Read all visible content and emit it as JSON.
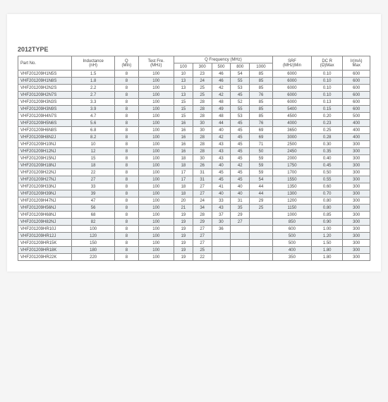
{
  "title": "2012TYPE",
  "headers": {
    "part": "Part No.",
    "inductance": "Inductance\n(nH)",
    "q": "Q\n(Min)",
    "testfre": "Test Fre.\n(MHz)",
    "qfreq": "Q Frequency (MHz)",
    "srf": "SRF\n(MHz)Min",
    "dcr": "DC R\n(Ω)Max",
    "ir": "Ir(mA)\nMax",
    "f100": "100",
    "f300": "300",
    "f500": "500",
    "f800": "800",
    "f1000": "1000"
  },
  "rows": [
    {
      "p": "VHF201209H1N5S",
      "l": "1.5",
      "q": "8",
      "t": "100",
      "v": [
        "10",
        "23",
        "46",
        "54",
        "85"
      ],
      "s": "6000",
      "d": "0.10",
      "i": "600"
    },
    {
      "p": "VHF201209H1N8S",
      "l": "1.8",
      "q": "8",
      "t": "100",
      "v": [
        "13",
        "24",
        "46",
        "55",
        "85"
      ],
      "s": "6000",
      "d": "0.10",
      "i": "600"
    },
    {
      "p": "VHF201209H2N2S",
      "l": "2.2",
      "q": "8",
      "t": "100",
      "v": [
        "13",
        "25",
        "42",
        "53",
        "85"
      ],
      "s": "6000",
      "d": "0.10",
      "i": "600"
    },
    {
      "p": "VHF201209H2N7S",
      "l": "2.7",
      "q": "8",
      "t": "100",
      "v": [
        "13",
        "25",
        "42",
        "45",
        "76"
      ],
      "s": "6000",
      "d": "0.10",
      "i": "600"
    },
    {
      "p": "VHF201209H3N3S",
      "l": "3.3",
      "q": "8",
      "t": "100",
      "v": [
        "15",
        "28",
        "48",
        "52",
        "85"
      ],
      "s": "6000",
      "d": "0.13",
      "i": "600"
    },
    {
      "p": "VHF201209H3N9S",
      "l": "3.9",
      "q": "8",
      "t": "100",
      "v": [
        "15",
        "28",
        "49",
        "55",
        "85"
      ],
      "s": "5400",
      "d": "0.15",
      "i": "600"
    },
    {
      "p": "VHF201209H4N7S",
      "l": "4.7",
      "q": "8",
      "t": "100",
      "v": [
        "15",
        "28",
        "48",
        "53",
        "85"
      ],
      "s": "4500",
      "d": "0.20",
      "i": "500"
    },
    {
      "p": "VHF201209H5N6S",
      "l": "5.6",
      "q": "8",
      "t": "100",
      "v": [
        "16",
        "30",
        "44",
        "45",
        "76"
      ],
      "s": "4000",
      "d": "0.23",
      "i": "400"
    },
    {
      "p": "VHF201209H6N8S",
      "l": "6.8",
      "q": "8",
      "t": "100",
      "v": [
        "16",
        "30",
        "40",
        "45",
        "69"
      ],
      "s": "3650",
      "d": "0.25",
      "i": "400"
    },
    {
      "p": "VHF201209H8N2J",
      "l": "8.2",
      "q": "8",
      "t": "100",
      "v": [
        "16",
        "28",
        "42",
        "45",
        "69"
      ],
      "s": "3000",
      "d": "0.28",
      "i": "400"
    },
    {
      "p": "VHF201209H10NJ",
      "l": "10",
      "q": "8",
      "t": "100",
      "v": [
        "16",
        "28",
        "43",
        "45",
        "71"
      ],
      "s": "2500",
      "d": "0.30",
      "i": "300"
    },
    {
      "p": "VHF201209H12NJ",
      "l": "12",
      "q": "8",
      "t": "100",
      "v": [
        "16",
        "28",
        "43",
        "45",
        "50"
      ],
      "s": "2450",
      "d": "0.35",
      "i": "300"
    },
    {
      "p": "VHF201209H15NJ",
      "l": "15",
      "q": "8",
      "t": "100",
      "v": [
        "18",
        "30",
        "43",
        "45",
        "59"
      ],
      "s": "2000",
      "d": "0.40",
      "i": "300"
    },
    {
      "p": "VHF201209H18NJ",
      "l": "18",
      "q": "8",
      "t": "100",
      "v": [
        "18",
        "26",
        "40",
        "42",
        "59"
      ],
      "s": "1750",
      "d": "0.45",
      "i": "300"
    },
    {
      "p": "VHF201209H22NJ",
      "l": "22",
      "q": "8",
      "t": "100",
      "v": [
        "17",
        "31",
        "45",
        "45",
        "59"
      ],
      "s": "1700",
      "d": "0.50",
      "i": "300"
    },
    {
      "p": "VHF201209H27NJ",
      "l": "27",
      "q": "8",
      "t": "100",
      "v": [
        "17",
        "31",
        "45",
        "45",
        "54"
      ],
      "s": "1550",
      "d": "0.55",
      "i": "300"
    },
    {
      "p": "VHF201209H33NJ",
      "l": "33",
      "q": "8",
      "t": "100",
      "v": [
        "18",
        "27",
        "41",
        "40",
        "44"
      ],
      "s": "1350",
      "d": "0.60",
      "i": "300"
    },
    {
      "p": "VHF201209H39NJ",
      "l": "39",
      "q": "8",
      "t": "100",
      "v": [
        "18",
        "27",
        "40",
        "40",
        "44"
      ],
      "s": "1300",
      "d": "0.70",
      "i": "300"
    },
    {
      "p": "VHF201209H47NJ",
      "l": "47",
      "q": "8",
      "t": "100",
      "v": [
        "20",
        "24",
        "33",
        "31",
        "29"
      ],
      "s": "1200",
      "d": "0.80",
      "i": "300"
    },
    {
      "p": "VHF201209H56NJ",
      "l": "56",
      "q": "8",
      "t": "100",
      "v": [
        "21",
        "34",
        "43",
        "35",
        "25"
      ],
      "s": "1150",
      "d": "0.80",
      "i": "300"
    },
    {
      "p": "VHF201209H68NJ",
      "l": "68",
      "q": "8",
      "t": "100",
      "v": [
        "19",
        "28",
        "37",
        "29",
        ""
      ],
      "s": "1000",
      "d": "0.85",
      "i": "300"
    },
    {
      "p": "VHF201209H82NJ",
      "l": "82",
      "q": "8",
      "t": "100",
      "v": [
        "19",
        "29",
        "30",
        "27",
        ""
      ],
      "s": "850",
      "d": "0.90",
      "i": "300"
    },
    {
      "p": "VHF201209HR10J",
      "l": "100",
      "q": "8",
      "t": "100",
      "v": [
        "19",
        "27",
        "36",
        "",
        ""
      ],
      "s": "600",
      "d": "1.00",
      "i": "300"
    },
    {
      "p": "VHF201209HR12J",
      "l": "120",
      "q": "8",
      "t": "100",
      "v": [
        "19",
        "27",
        "",
        "",
        ""
      ],
      "s": "500",
      "d": "1.20",
      "i": "300"
    },
    {
      "p": "VHF201209HR15K",
      "l": "150",
      "q": "8",
      "t": "100",
      "v": [
        "19",
        "27",
        "",
        "",
        ""
      ],
      "s": "500",
      "d": "1.50",
      "i": "300"
    },
    {
      "p": "VHF201209HR18K",
      "l": "180",
      "q": "8",
      "t": "100",
      "v": [
        "19",
        "25",
        "",
        "",
        ""
      ],
      "s": "400",
      "d": "1.80",
      "i": "300"
    },
    {
      "p": "VHF201209HR22K",
      "l": "220",
      "q": "8",
      "t": "100",
      "v": [
        "19",
        "22",
        "",
        "",
        ""
      ],
      "s": "350",
      "d": "1.80",
      "i": "300"
    }
  ]
}
